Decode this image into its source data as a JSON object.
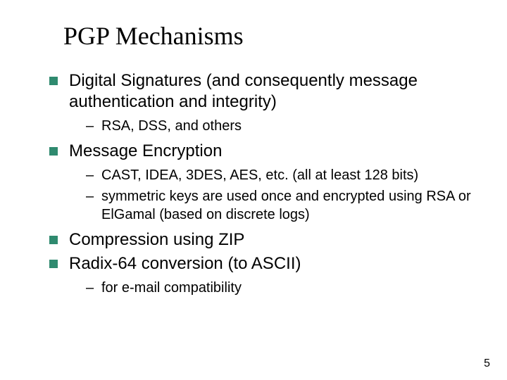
{
  "slide": {
    "title": "PGP Mechanisms",
    "page_number": "5",
    "bullet_color": "#2f8a6f",
    "title_font": "Times New Roman",
    "body_font": "Arial",
    "title_fontsize": 36,
    "level1_fontsize": 24,
    "level2_fontsize": 20,
    "background_color": "#ffffff",
    "text_color": "#000000",
    "items": [
      {
        "text": "Digital Signatures (and consequently message authentication and integrity)",
        "subitems": [
          {
            "text": "RSA, DSS, and others"
          }
        ]
      },
      {
        "text": "Message Encryption",
        "subitems": [
          {
            "text": "CAST, IDEA, 3DES, AES, etc. (all at least 128 bits)"
          },
          {
            "text": "symmetric keys are used once and encrypted using RSA or ElGamal (based on discrete logs)"
          }
        ]
      },
      {
        "text": "Compression using ZIP",
        "subitems": []
      },
      {
        "text": "Radix-64 conversion (to ASCII)",
        "subitems": [
          {
            "text": "for e-mail compatibility"
          }
        ]
      }
    ]
  }
}
